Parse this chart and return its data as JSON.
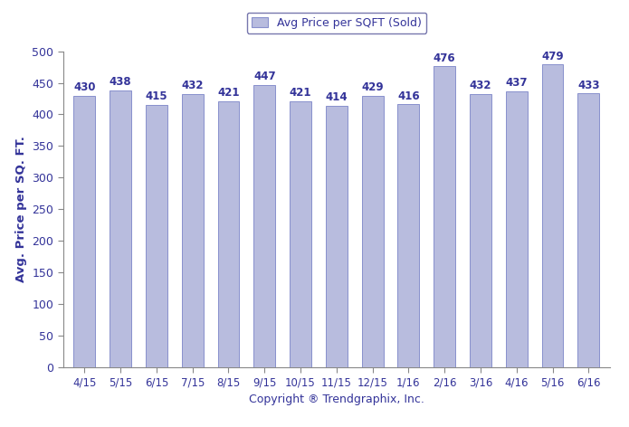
{
  "categories": [
    "4/15",
    "5/15",
    "6/15",
    "7/15",
    "8/15",
    "9/15",
    "10/15",
    "11/15",
    "12/15",
    "1/16",
    "2/16",
    "3/16",
    "4/16",
    "5/16",
    "6/16"
  ],
  "values": [
    430,
    438,
    415,
    432,
    421,
    447,
    421,
    414,
    429,
    416,
    476,
    432,
    437,
    479,
    433
  ],
  "bar_color": "#b8bcde",
  "bar_edge_color": "#8890cc",
  "bar_edge_width": 0.7,
  "ylabel": "Avg. Price per SQ. FT.",
  "xlabel": "Copyright ® Trendgraphix, Inc.",
  "ylim": [
    0,
    500
  ],
  "yticks": [
    0,
    50,
    100,
    150,
    200,
    250,
    300,
    350,
    400,
    450,
    500
  ],
  "legend_label": "Avg Price per SQFT (Sold)",
  "legend_box_color": "#b8bcde",
  "legend_box_edge_color": "#8890cc",
  "value_label_color": "#333399",
  "value_label_fontsize": 8.5,
  "background_color": "#ffffff",
  "axis_label_color": "#333399",
  "tick_label_color": "#333399",
  "spine_color": "#888888",
  "bar_width": 0.6
}
